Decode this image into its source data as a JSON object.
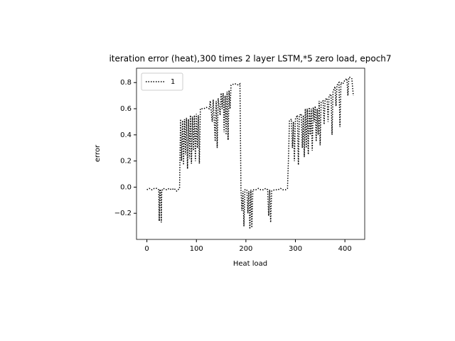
{
  "chart_data": {
    "type": "line",
    "title": "iteration error (heat),300 times 2 layer LSTM,*5 zero load, epoch7",
    "x_label": "Heat load",
    "y_label": "error",
    "xlim": [
      -21,
      440
    ],
    "ylim": [
      -0.4,
      0.91
    ],
    "xticks": [
      0,
      100,
      200,
      300,
      400
    ],
    "yticks": [
      {
        "value": -0.2,
        "label": "−0.2"
      },
      {
        "value": 0,
        "label": "0.0"
      },
      0.2,
      0.4,
      0.6,
      0.8
    ],
    "legend": "upper left",
    "line_style": "dotted",
    "x": [
      0,
      5,
      10,
      15,
      20,
      24,
      25,
      26,
      28,
      29,
      30,
      33,
      40,
      45,
      50,
      55,
      60,
      63,
      66,
      68,
      70,
      72,
      74,
      76,
      78,
      80,
      82,
      84,
      86,
      88,
      90,
      92,
      94,
      96,
      98,
      100,
      102,
      104,
      106,
      108,
      115,
      120,
      126,
      128,
      132,
      134,
      138,
      140,
      142,
      144,
      148,
      150,
      152,
      154,
      156,
      158,
      160,
      162,
      164,
      166,
      168,
      170,
      176,
      180,
      185,
      188,
      190,
      192,
      194,
      196,
      198,
      202,
      204,
      206,
      208,
      210,
      212,
      214,
      220,
      225,
      230,
      235,
      240,
      244,
      246,
      248,
      250,
      252,
      258,
      265,
      270,
      275,
      280,
      284,
      286,
      288,
      292,
      294,
      296,
      298,
      300,
      304,
      306,
      308,
      312,
      314,
      316,
      318,
      320,
      322,
      324,
      326,
      328,
      330,
      332,
      334,
      336,
      338,
      340,
      342,
      344,
      346,
      348,
      350,
      352,
      356,
      358,
      360,
      364,
      366,
      368,
      372,
      374,
      376,
      380,
      382,
      384,
      388,
      390,
      392,
      396,
      400,
      404,
      406,
      408,
      410,
      414,
      417
    ],
    "series": [
      {
        "name": "1",
        "color": "#000000",
        "values": [
          -0.02,
          -0.01,
          -0.02,
          -0.01,
          -0.01,
          -0.02,
          -0.26,
          -0.02,
          -0.02,
          -0.27,
          -0.03,
          -0.01,
          -0.02,
          -0.01,
          -0.02,
          -0.01,
          -0.03,
          -0.02,
          -0.01,
          0.52,
          0.2,
          0.51,
          0.17,
          0.52,
          0.25,
          0.53,
          0.14,
          0.52,
          0.22,
          0.55,
          0.18,
          0.54,
          0.28,
          0.55,
          0.2,
          0.56,
          0.3,
          0.55,
          0.18,
          0.6,
          0.6,
          0.61,
          0.6,
          0.66,
          0.5,
          0.67,
          0.35,
          0.66,
          0.3,
          0.68,
          0.55,
          0.72,
          0.6,
          0.72,
          0.42,
          0.7,
          0.4,
          0.73,
          0.36,
          0.74,
          0.6,
          0.78,
          0.79,
          0.79,
          0.78,
          0.79,
          -0.02,
          -0.18,
          -0.03,
          -0.3,
          -0.02,
          -0.02,
          -0.2,
          -0.03,
          -0.32,
          -0.02,
          -0.31,
          -0.02,
          -0.02,
          -0.01,
          -0.02,
          -0.02,
          -0.01,
          -0.02,
          -0.22,
          -0.02,
          -0.27,
          -0.03,
          -0.02,
          -0.02,
          -0.01,
          -0.02,
          -0.02,
          -0.01,
          0.22,
          0.51,
          0.52,
          0.3,
          0.5,
          0.2,
          0.52,
          0.55,
          0.17,
          0.55,
          0.56,
          0.3,
          0.55,
          0.23,
          0.6,
          0.3,
          0.6,
          0.25,
          0.61,
          0.4,
          0.6,
          0.28,
          0.61,
          0.5,
          0.62,
          0.35,
          0.6,
          0.4,
          0.66,
          0.32,
          0.65,
          0.66,
          0.48,
          0.67,
          0.68,
          0.5,
          0.7,
          0.71,
          0.4,
          0.73,
          0.77,
          0.62,
          0.78,
          0.8,
          0.46,
          0.8,
          0.79,
          0.82,
          0.83,
          0.7,
          0.84,
          0.84,
          0.83,
          0.7
        ]
      }
    ]
  }
}
